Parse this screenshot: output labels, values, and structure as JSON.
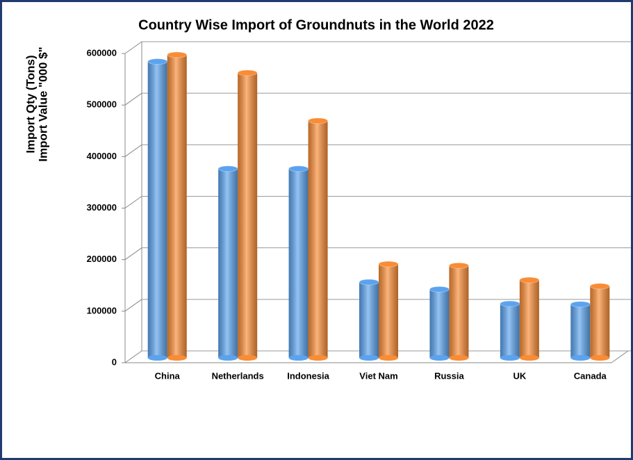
{
  "chart_data": {
    "type": "bar3d",
    "title": "Country Wise Import of Groundnuts  in the World 2022",
    "ylabel": [
      "Import Qty (Tons)",
      "Import Value \"000 $\""
    ],
    "categories": [
      "China",
      "Netherlands",
      "Indonesia",
      "Viet Nam",
      "Russia",
      "UK",
      "Canada"
    ],
    "series": [
      {
        "color": "#5ba3ee",
        "values": [
          575000,
          367000,
          367000,
          147000,
          133000,
          105000,
          104000
        ]
      },
      {
        "color": "#f98c35",
        "values": [
          588000,
          553000,
          460000,
          182000,
          179000,
          151000,
          139000
        ]
      }
    ],
    "ylim": [
      0,
      600000
    ],
    "yticks": [
      0,
      100000,
      200000,
      300000,
      400000,
      500000,
      600000
    ],
    "grid": true
  }
}
